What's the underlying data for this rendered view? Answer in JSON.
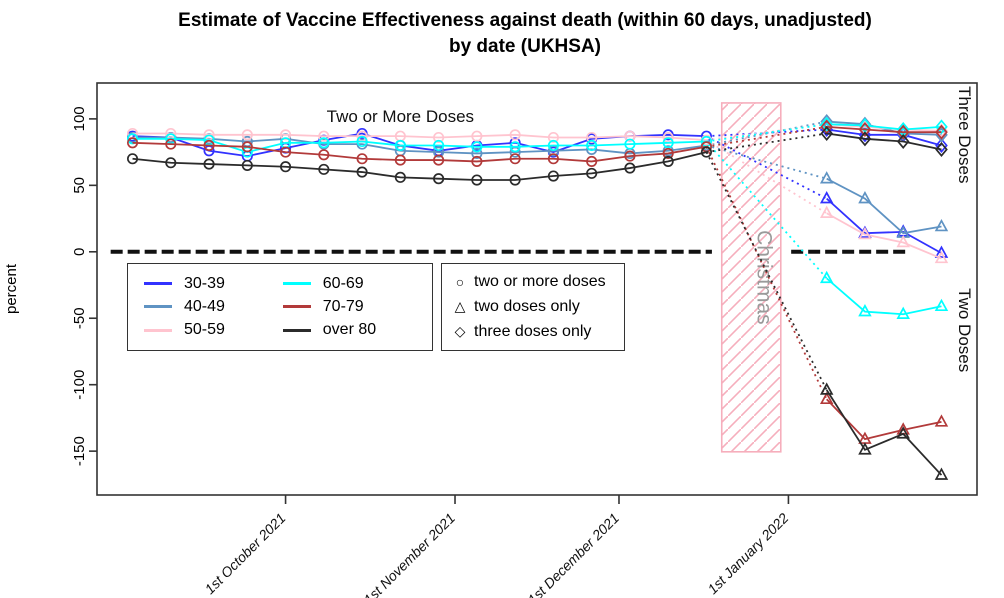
{
  "title": {
    "line1": "Estimate of Vaccine Effectiveness against death (within 60 days, unadjusted)",
    "line2": "by date (UKHSA)"
  },
  "chart_data": {
    "type": "line",
    "ylabel": "percent",
    "y_ticks": [
      100,
      50,
      0,
      -50,
      -100,
      -150
    ],
    "y_range": [
      -183,
      127
    ],
    "x_range_days": [
      -34.5,
      126.5
    ],
    "x_ticks": [
      {
        "label": "1st October 2021",
        "day": 0
      },
      {
        "label": "1st November 2021",
        "day": 31
      },
      {
        "label": "1st December 2021",
        "day": 61
      },
      {
        "label": "1st January 2022",
        "day": 92
      }
    ],
    "axis_color": "#333333",
    "zero_line": {
      "pct": 0,
      "color": "#111111",
      "segments_days": [
        [
          -32,
          78
        ],
        [
          92.5,
          113.5
        ]
      ]
    },
    "christmas_band": {
      "label": "Christmas",
      "day_start": 79.8,
      "day_end": 90.6,
      "pct_top": 112,
      "pct_bottom": -150.5,
      "border_color": "#f6aebc",
      "hatch_color": "#f6aebc",
      "label_color": "#9a9a9a"
    },
    "annotations": [
      {
        "text": "Two or More Doses",
        "day": 21,
        "pct": 101,
        "rotate": 0,
        "size": 17
      },
      {
        "text": "Three Doses",
        "day": 124,
        "pct": 88,
        "rotate": 90,
        "size": 17
      },
      {
        "text": "Two Doses",
        "day": 124,
        "pct": -59,
        "rotate": 90,
        "size": 17
      }
    ],
    "circles_days": [
      -28,
      -21,
      -14,
      -7,
      0,
      7,
      14,
      21,
      28,
      35,
      42,
      49,
      56,
      63,
      70,
      77
    ],
    "post_days": [
      99,
      106,
      113,
      120
    ],
    "series": [
      {
        "name": "30-39",
        "color": "#3232ff",
        "circles": [
          87,
          86,
          76,
          72,
          78,
          84,
          89,
          80,
          76,
          80,
          82,
          75,
          85,
          87,
          88,
          87
        ],
        "triangles": [
          40,
          14,
          15,
          -1
        ],
        "diamonds": [
          92,
          88,
          88,
          80
        ]
      },
      {
        "name": "40-49",
        "color": "#5f93c3",
        "circles": [
          86,
          86,
          85,
          83,
          85,
          81,
          81,
          76,
          75,
          74,
          75,
          76,
          77,
          74,
          76,
          80
        ],
        "triangles": [
          55,
          40,
          14,
          19
        ],
        "diamonds": [
          98,
          96,
          89,
          88
        ]
      },
      {
        "name": "50-59",
        "color": "#ffc4cf",
        "circles": [
          89,
          89,
          88,
          88,
          88,
          87,
          87,
          87,
          86,
          87,
          88,
          86,
          86,
          87,
          86,
          84
        ],
        "triangles": [
          29,
          13,
          7,
          -5
        ],
        "diamonds": [
          96,
          94,
          92,
          91
        ]
      },
      {
        "name": "60-69",
        "color": "#00ffff",
        "circles": [
          85,
          85,
          84,
          75,
          82,
          82,
          83,
          80,
          80,
          79,
          79,
          80,
          80,
          81,
          82,
          83
        ],
        "triangles": [
          -20,
          -45,
          -47,
          -41
        ],
        "diamonds": [
          96,
          95,
          92,
          94
        ]
      },
      {
        "name": "70-79",
        "color": "#b23a3a",
        "circles": [
          82,
          81,
          80,
          79,
          75,
          73,
          70,
          69,
          69,
          68,
          70,
          70,
          68,
          72,
          74,
          79
        ],
        "triangles": [
          -111,
          -141,
          -134,
          -128
        ],
        "diamonds": [
          94,
          92,
          90,
          90
        ]
      },
      {
        "name": "over 80",
        "color": "#2b2b2b",
        "circles": [
          70,
          67,
          66,
          65,
          64,
          62,
          60,
          56,
          55,
          54,
          54,
          57,
          59,
          63,
          68,
          75
        ],
        "triangles": [
          -104,
          -149,
          -137,
          -168
        ],
        "diamonds": [
          89,
          85,
          83,
          77
        ]
      }
    ],
    "legend_symbols": [
      {
        "glyph": "○",
        "label": "two or more doses"
      },
      {
        "glyph": "△",
        "label": "two doses only"
      },
      {
        "glyph": "◇",
        "label": "three doses only"
      }
    ]
  }
}
